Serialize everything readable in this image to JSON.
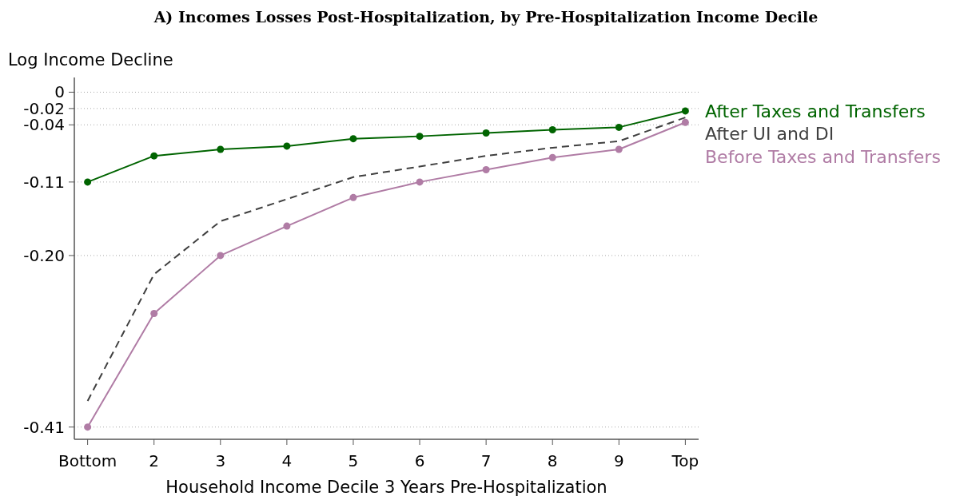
{
  "chart_data": {
    "type": "line",
    "title": "A) Incomes Losses Post-Hospitalization, by Pre-Hospitalization Income Decile",
    "xlabel": "Household Income Decile 3 Years Pre-Hospitalization",
    "ylabel": "Log Income Decline",
    "categories": [
      "Bottom",
      "2",
      "3",
      "4",
      "5",
      "6",
      "7",
      "8",
      "9",
      "Top"
    ],
    "series": [
      {
        "name": "After Taxes and Transfers",
        "color": "#006400",
        "marker": "circle",
        "line_style": "solid",
        "values": [
          -0.11,
          -0.078,
          -0.07,
          -0.066,
          -0.057,
          -0.054,
          -0.05,
          -0.046,
          -0.043,
          -0.023
        ]
      },
      {
        "name": "After UI and DI",
        "color": "#404040",
        "marker": "none",
        "line_style": "dashed",
        "values": [
          -0.378,
          -0.223,
          -0.158,
          -0.131,
          -0.104,
          -0.091,
          -0.078,
          -0.068,
          -0.06,
          -0.031
        ]
      },
      {
        "name": "Before Taxes and Transfers",
        "color": "#b07ca5",
        "marker": "circle",
        "line_style": "solid",
        "values": [
          -0.41,
          -0.271,
          -0.2,
          -0.164,
          -0.129,
          -0.11,
          -0.095,
          -0.08,
          -0.07,
          -0.037
        ]
      }
    ],
    "ylim": [
      -0.425,
      0.018
    ],
    "yticks": [
      0,
      -0.02,
      -0.04,
      -0.11,
      {
        "value": -0.2,
        "label": "-0.20"
      },
      -0.41
    ],
    "grid": "y",
    "legend": "right"
  }
}
